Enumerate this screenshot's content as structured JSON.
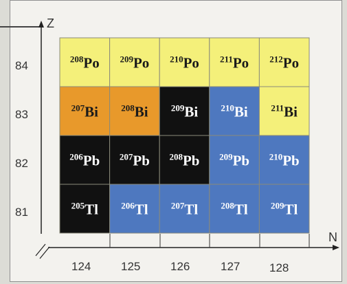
{
  "axes": {
    "y_label": "Z",
    "x_label": "N",
    "z_values": [
      "84",
      "83",
      "82",
      "81"
    ],
    "n_values": [
      "124",
      "125",
      "126",
      "127",
      "128"
    ]
  },
  "colors": {
    "yellow": "#f4f07a",
    "orange": "#e8992b",
    "black": "#111111",
    "blue": "#4e78bf",
    "white_text": "#ffffff",
    "dark_text": "#1a1a1a"
  },
  "chart_data": {
    "type": "table",
    "rows": [
      {
        "z": "84",
        "cells": [
          {
            "mass": "208",
            "element": "Po",
            "color": "yellow"
          },
          {
            "mass": "209",
            "element": "Po",
            "color": "yellow"
          },
          {
            "mass": "210",
            "element": "Po",
            "color": "yellow"
          },
          {
            "mass": "211",
            "element": "Po",
            "color": "yellow"
          },
          {
            "mass": "212",
            "element": "Po",
            "color": "yellow"
          }
        ]
      },
      {
        "z": "83",
        "cells": [
          {
            "mass": "207",
            "element": "Bi",
            "color": "orange"
          },
          {
            "mass": "208",
            "element": "Bi",
            "color": "orange"
          },
          {
            "mass": "209",
            "element": "Bi",
            "color": "black"
          },
          {
            "mass": "210",
            "element": "Bi",
            "color": "blue"
          },
          {
            "mass": "211",
            "element": "Bi",
            "color": "yellow"
          }
        ]
      },
      {
        "z": "82",
        "cells": [
          {
            "mass": "206",
            "element": "Pb",
            "color": "black"
          },
          {
            "mass": "207",
            "element": "Pb",
            "color": "black"
          },
          {
            "mass": "208",
            "element": "Pb",
            "color": "black"
          },
          {
            "mass": "209",
            "element": "Pb",
            "color": "blue"
          },
          {
            "mass": "210",
            "element": "Pb",
            "color": "blue"
          }
        ]
      },
      {
        "z": "81",
        "cells": [
          {
            "mass": "205",
            "element": "Tl",
            "color": "black"
          },
          {
            "mass": "206",
            "element": "Tl",
            "color": "blue"
          },
          {
            "mass": "207",
            "element": "Tl",
            "color": "blue"
          },
          {
            "mass": "208",
            "element": "Tl",
            "color": "blue"
          },
          {
            "mass": "209",
            "element": "Tl",
            "color": "blue"
          }
        ]
      }
    ]
  }
}
